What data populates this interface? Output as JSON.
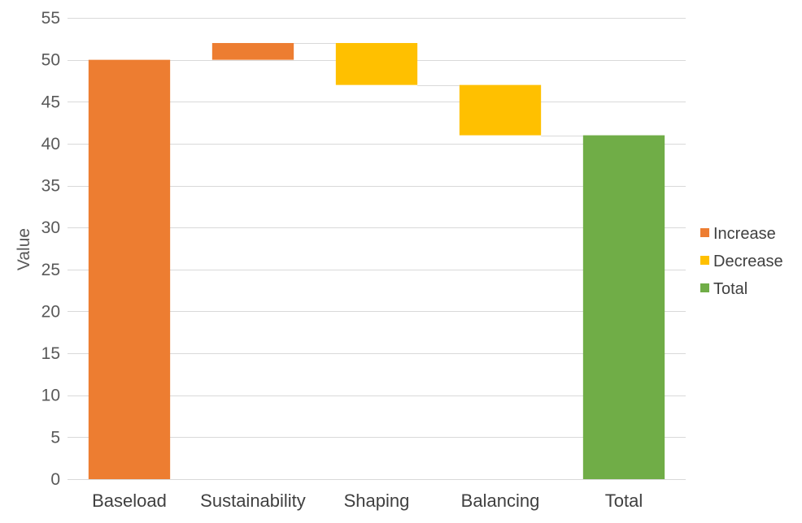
{
  "chart_data": {
    "type": "bar",
    "subtype": "waterfall",
    "title": "",
    "xlabel": "",
    "ylabel": "Value",
    "ylim": [
      0,
      55
    ],
    "yticks": [
      0,
      5,
      10,
      15,
      20,
      25,
      30,
      35,
      40,
      45,
      50,
      55
    ],
    "grid": true,
    "legend_position": "right",
    "categories": [
      "Baseload",
      "Sustainability",
      "Shaping",
      "Balancing",
      "Total"
    ],
    "bars": [
      {
        "category": "Baseload",
        "kind": "Increase",
        "start": 0,
        "end": 50
      },
      {
        "category": "Sustainability",
        "kind": "Increase",
        "start": 50,
        "end": 52
      },
      {
        "category": "Shaping",
        "kind": "Decrease",
        "start": 52,
        "end": 47
      },
      {
        "category": "Balancing",
        "kind": "Decrease",
        "start": 47,
        "end": 41
      },
      {
        "category": "Total",
        "kind": "Total",
        "start": 0,
        "end": 41
      }
    ],
    "legend": [
      {
        "name": "Increase",
        "color": "#ED7D31"
      },
      {
        "name": "Decrease",
        "color": "#FFC000"
      },
      {
        "name": "Total",
        "color": "#70AD47"
      }
    ]
  }
}
